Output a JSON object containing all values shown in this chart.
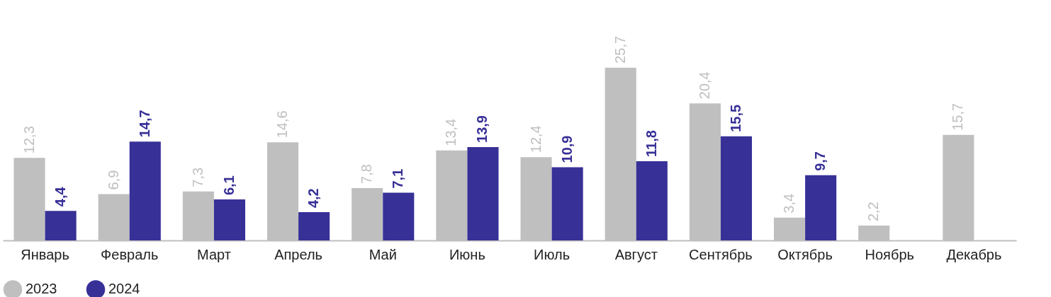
{
  "chart_data": {
    "type": "bar",
    "categories": [
      "Январь",
      "Февраль",
      "Март",
      "Апрель",
      "Май",
      "Июнь",
      "Июль",
      "Август",
      "Сентябрь",
      "Октябрь",
      "Ноябрь",
      "Декабрь"
    ],
    "series": [
      {
        "name": "2023",
        "color": "#bfbfbf",
        "values": [
          12.3,
          6.9,
          7.3,
          14.6,
          7.8,
          13.4,
          12.4,
          25.7,
          20.4,
          3.4,
          2.2,
          15.7
        ],
        "value_labels": [
          "12,3",
          "6,9",
          "7,3",
          "14,6",
          "7,8",
          "13,4",
          "12,4",
          "25,7",
          "20,4",
          "3,4",
          "2,2",
          "15,7"
        ]
      },
      {
        "name": "2024",
        "color": "#373097",
        "values": [
          4.4,
          14.7,
          6.1,
          4.2,
          7.1,
          13.9,
          10.9,
          11.8,
          15.5,
          9.7,
          null,
          null
        ],
        "value_labels": [
          "4,4",
          "14,7",
          "6,1",
          "4,2",
          "7,1",
          "13,9",
          "10,9",
          "11,8",
          "15,5",
          "9,7",
          null,
          null
        ]
      }
    ],
    "legend": "bottom left",
    "grid": false
  }
}
